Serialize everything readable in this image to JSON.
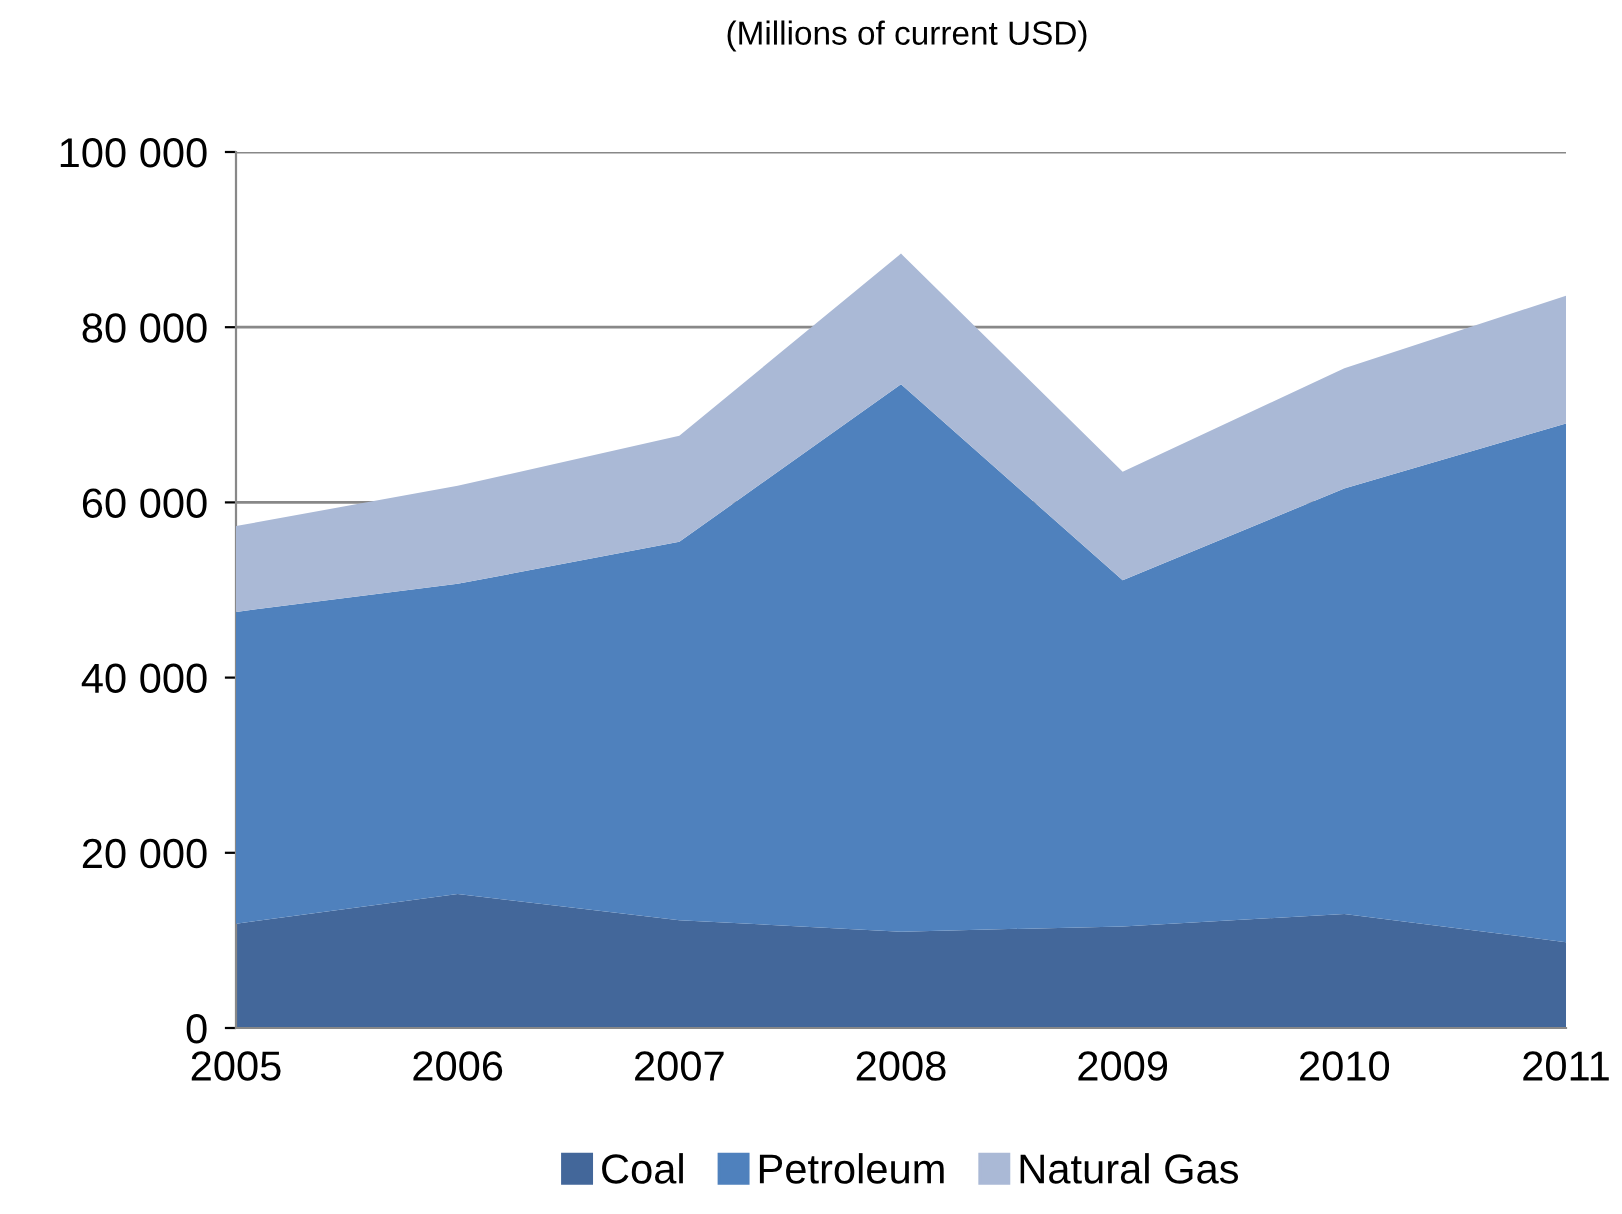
{
  "chart_data": {
    "type": "area",
    "stacked": true,
    "subtitle": "(Millions of current USD)",
    "categories": [
      "2005",
      "2006",
      "2007",
      "2008",
      "2009",
      "2010",
      "2011"
    ],
    "series": [
      {
        "name": "Coal",
        "color": "#43679a",
        "values": [
          11900,
          15300,
          12300,
          11000,
          11600,
          13000,
          9800
        ]
      },
      {
        "name": "Petroleum",
        "color": "#4f81bd",
        "values": [
          35600,
          35400,
          43200,
          62500,
          39500,
          48600,
          59200
        ]
      },
      {
        "name": "Natural Gas",
        "color": "#aab9d6",
        "values": [
          9800,
          11200,
          12100,
          14900,
          12400,
          13700,
          14600
        ]
      }
    ],
    "ylim": [
      0,
      100000
    ],
    "yticks": [
      {
        "value": 0,
        "label": "0"
      },
      {
        "value": 20000,
        "label": "20 000"
      },
      {
        "value": 40000,
        "label": "40 000"
      },
      {
        "value": 60000,
        "label": "60 000"
      },
      {
        "value": 80000,
        "label": "80 000"
      },
      {
        "value": 100000,
        "label": "100 000"
      }
    ],
    "grid": "y",
    "legend": "bottom"
  }
}
